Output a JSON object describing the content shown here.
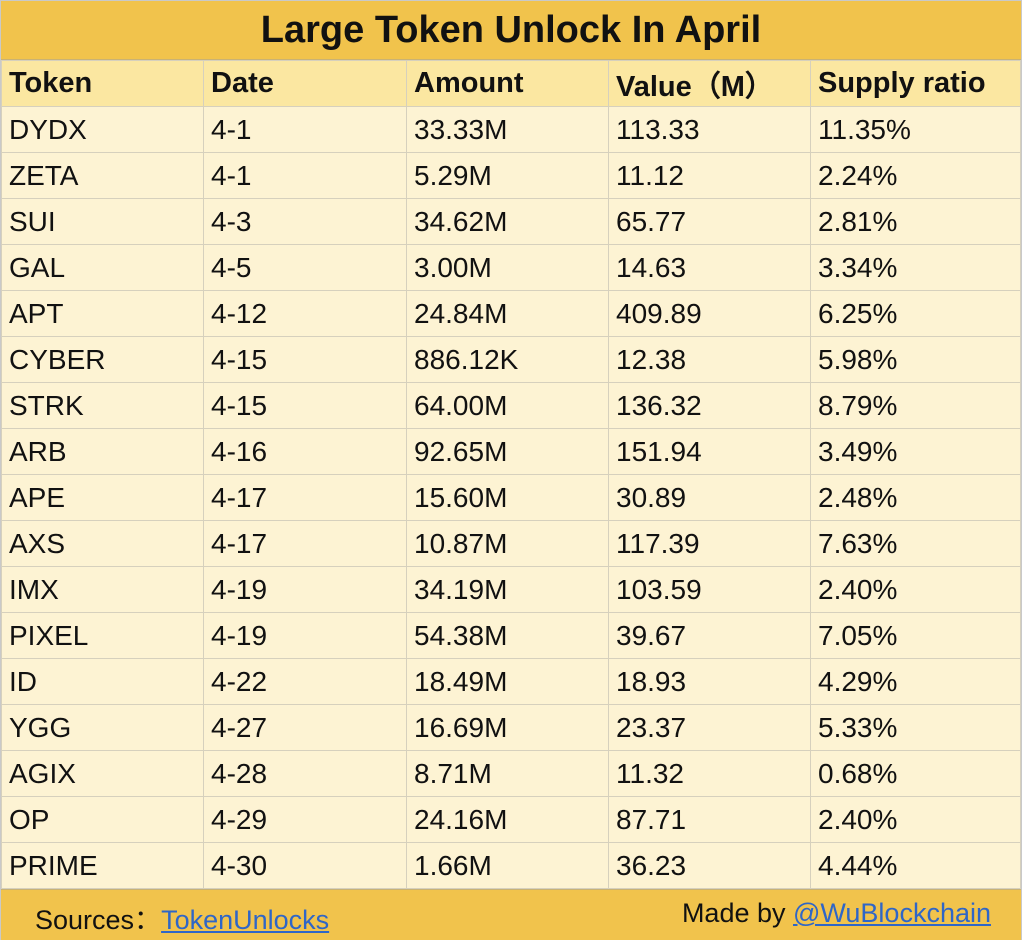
{
  "title": "Large Token Unlock In April",
  "table": {
    "headers": [
      "Token",
      "Date",
      "Amount",
      "Value（M）",
      "Supply ratio"
    ],
    "rows": [
      [
        "DYDX",
        "4-1",
        "33.33M",
        "113.33",
        "11.35%"
      ],
      [
        "ZETA",
        "4-1",
        "5.29M",
        "11.12",
        "2.24%"
      ],
      [
        "SUI",
        "4-3",
        "34.62M",
        "65.77",
        "2.81%"
      ],
      [
        "GAL",
        "4-5",
        "3.00M",
        "14.63",
        "3.34%"
      ],
      [
        "APT",
        "4-12",
        "24.84M",
        "409.89",
        "6.25%"
      ],
      [
        "CYBER",
        "4-15",
        "886.12K",
        "12.38",
        "5.98%"
      ],
      [
        "STRK",
        "4-15",
        "64.00M",
        "136.32",
        "8.79%"
      ],
      [
        "ARB",
        "4-16",
        "92.65M",
        "151.94",
        "3.49%"
      ],
      [
        "APE",
        "4-17",
        "15.60M",
        "30.89",
        "2.48%"
      ],
      [
        "AXS",
        "4-17",
        "10.87M",
        "117.39",
        "7.63%"
      ],
      [
        "IMX",
        "4-19",
        "34.19M",
        "103.59",
        "2.40%"
      ],
      [
        "PIXEL",
        "4-19",
        "54.38M",
        "39.67",
        "7.05%"
      ],
      [
        "ID",
        "4-22",
        "18.49M",
        "18.93",
        "4.29%"
      ],
      [
        "YGG",
        "4-27",
        "16.69M",
        "23.37",
        "5.33%"
      ],
      [
        "AGIX",
        "4-28",
        "8.71M",
        "11.32",
        "0.68%"
      ],
      [
        "OP",
        "4-29",
        "24.16M",
        "87.71",
        "2.40%"
      ],
      [
        "PRIME",
        "4-30",
        "1.66M",
        "36.23",
        "4.44%"
      ]
    ]
  },
  "footer": {
    "sources_label": "Sources：",
    "sources_link": "TokenUnlocks",
    "made_by_label": "Made by ",
    "made_by_link": "@WuBlockchain"
  },
  "colors": {
    "title_bg": "#f1c34c",
    "header_bg": "#fbe7a1",
    "body_bg": "#fdf3d3",
    "link": "#2f66c7"
  }
}
